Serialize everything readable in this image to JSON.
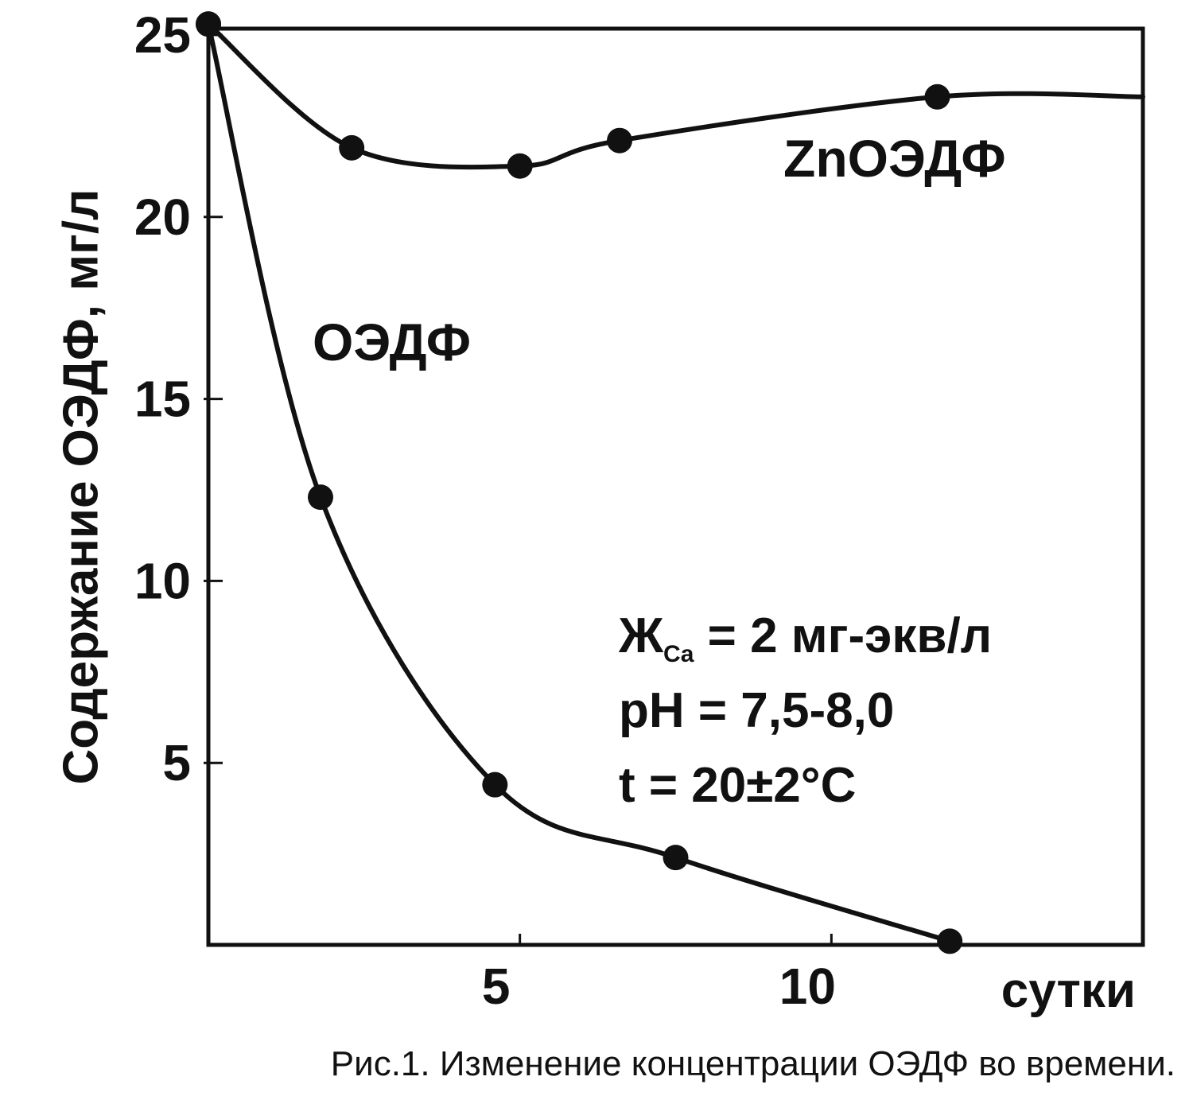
{
  "chart_data": {
    "type": "line",
    "title": "",
    "caption": "Рис.1. Изменение концентрации ОЭДФ во времени.",
    "xlabel": "сутки",
    "ylabel": "Содержание ОЭДФ, мг/л",
    "xlim": [
      0,
      15
    ],
    "ylim": [
      0,
      25
    ],
    "grid": false,
    "legend": "none",
    "x_ticks": [
      5,
      10
    ],
    "x_tick_labels": [
      "5",
      "10"
    ],
    "x_minor_ticks": [
      5,
      10
    ],
    "y_ticks": [
      5,
      10,
      15,
      20,
      25
    ],
    "y_tick_labels": [
      "5",
      "10",
      "15",
      "20",
      "25"
    ],
    "series": [
      {
        "name": "ZnОЭДФ",
        "color": "#111111",
        "points": [
          {
            "x": 0,
            "y": 25.3
          },
          {
            "x": 2.3,
            "y": 21.9
          },
          {
            "x": 5.0,
            "y": 21.4
          },
          {
            "x": 6.6,
            "y": 22.1
          },
          {
            "x": 11.7,
            "y": 23.3
          }
        ],
        "extends_to_x": 15
      },
      {
        "name": "ОЭДФ",
        "color": "#111111",
        "points": [
          {
            "x": 0,
            "y": 25.3
          },
          {
            "x": 1.8,
            "y": 12.3
          },
          {
            "x": 4.6,
            "y": 4.4
          },
          {
            "x": 7.5,
            "y": 2.4
          },
          {
            "x": 11.9,
            "y": 0.1
          }
        ]
      }
    ],
    "annotations": {
      "line1_main": "Ж",
      "line1_sub": "Ca",
      "line1_rest": " = 2 мг-экв/л",
      "line2": "pH = 7,5-8,0",
      "line3": "t = 20±2°C"
    }
  }
}
